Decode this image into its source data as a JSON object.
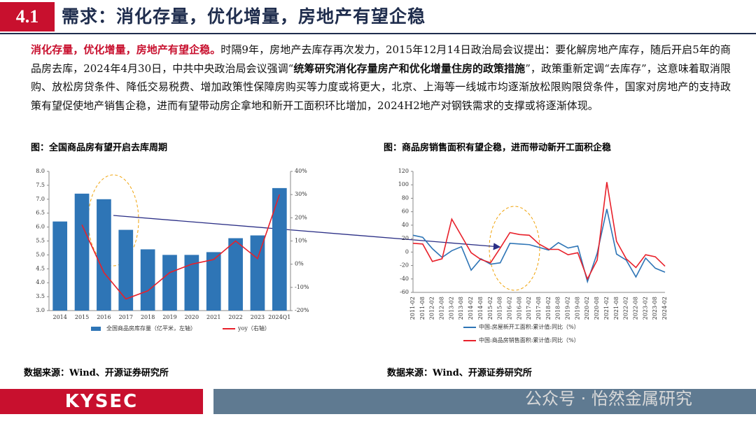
{
  "header": {
    "number": "4.1",
    "title": "需求：消化存量，优化增量，房地产有望企稳"
  },
  "paragraph": [
    "消化存量，优化增量，房地产有望企稳。",
    "时隔9年，房地产去库存再次发力，2015年12月14日政治局会议提出：要化解房地产库存，随后开启5年的商品房去库，2024年4月30日，中共中央政治局会议强调“",
    "统筹研究消化存量房产和优化增量住房的政策措施",
    "”，政策重新定调“去库存”，这意味着取消限购、放松房贷条件、降低交易税费、增加政策性保障房购买等力度或将更大，北京、上海等一线城市均逐渐放松限购限贷条件，国家对房地产的支持政策有望促使地产销售企稳，进而有望带动房企拿地和新开工面积环比增加，2024H2地产对钢铁需求的支撑或将逐渐体现。"
  ],
  "sources": [
    "数据来源：Wind、开源证券研究所",
    "数据来源：Wind、开源证券研究所"
  ],
  "footer": {
    "logo": "KYSEC",
    "watermark": "公众号 · 怡然金属研究"
  },
  "chart_data": [
    {
      "type": "bar",
      "title": "图：全国商品房有望开启去库周期",
      "categories": [
        "2014",
        "2015",
        "2016",
        "2017",
        "2018",
        "2019",
        "2020",
        "2021",
        "2022",
        "2023",
        "2024Q1"
      ],
      "series": [
        {
          "name": "全国商品房库存量（亿平米，左轴）",
          "color": "#2e75b6",
          "values": [
            6.2,
            7.2,
            7.0,
            5.9,
            5.2,
            5.0,
            5.0,
            5.1,
            5.6,
            5.7,
            7.4
          ]
        },
        {
          "name": "yoy（右轴）",
          "color": "#e8202a",
          "type": "line",
          "axis": "y2",
          "values": [
            null,
            17,
            -3.6,
            -15,
            -11.5,
            -3.6,
            0,
            2,
            10,
            2.4,
            30
          ]
        }
      ],
      "ylim": [
        3,
        8
      ],
      "yticks": [
        {
          "value": 3,
          "label": "3.0"
        },
        {
          "value": 3.5,
          "label": "3.5"
        },
        {
          "value": 4,
          "label": "4.0"
        },
        {
          "value": 4.5,
          "label": "4.5"
        },
        {
          "value": 5,
          "label": "5.0"
        },
        {
          "value": 5.5,
          "label": "5.5"
        },
        {
          "value": 6,
          "label": "6.0"
        },
        {
          "value": 6.5,
          "label": "6.5"
        },
        {
          "value": 7,
          "label": "7.0"
        },
        {
          "value": 7.5,
          "label": "7.5"
        },
        {
          "value": 8,
          "label": "8.0"
        }
      ],
      "y2lim": [
        -20,
        40
      ],
      "y2ticks": [
        {
          "value": -20,
          "label": "-20%"
        },
        {
          "value": -10,
          "label": "-10%"
        },
        {
          "value": 0,
          "label": "0%"
        },
        {
          "value": 10,
          "label": "10%"
        },
        {
          "value": 20,
          "label": "20%"
        },
        {
          "value": 30,
          "label": "30%"
        },
        {
          "value": 40,
          "label": "40%"
        }
      ]
    },
    {
      "type": "line",
      "title": "图：商品房销售面积有望企稳，进而带动新开工面积企稳",
      "categories": [
        "2011-02",
        "2011-08",
        "2012-02",
        "2012-08",
        "2013-02",
        "2013-08",
        "2014-02",
        "2014-08",
        "2015-02",
        "2015-08",
        "2016-02",
        "2016-08",
        "2017-02",
        "2017-08",
        "2018-02",
        "2018-08",
        "2019-02",
        "2019-08",
        "2020-02",
        "2020-08",
        "2021-02",
        "2021-08",
        "2022-02",
        "2022-08",
        "2023-02",
        "2023-08",
        "2024-02"
      ],
      "series": [
        {
          "name": "中国:房屋新开工面积:累计值:同比（%）",
          "color": "#2e75b6",
          "values": [
            25,
            22,
            5,
            -8,
            2,
            8,
            -27,
            -10,
            -18,
            -16,
            13,
            12,
            11,
            7,
            3,
            14,
            6,
            9,
            -44,
            -2,
            64,
            -3,
            -12,
            -37,
            -9,
            -24,
            -30
          ]
        },
        {
          "name": "中国:商品房销售面积:累计值:同比（%）",
          "color": "#e8202a",
          "values": [
            13,
            12,
            -14,
            -10,
            49,
            24,
            -1,
            -11,
            -16,
            6,
            29,
            26,
            25,
            12,
            4,
            4,
            -4,
            -1,
            -40,
            -12,
            104,
            16,
            -10,
            -23,
            -4,
            -7,
            -21
          ]
        }
      ],
      "ylim": [
        -60,
        120
      ],
      "yticks": [
        -60,
        -40,
        -20,
        0,
        20,
        40,
        60,
        80,
        100,
        120
      ]
    }
  ]
}
